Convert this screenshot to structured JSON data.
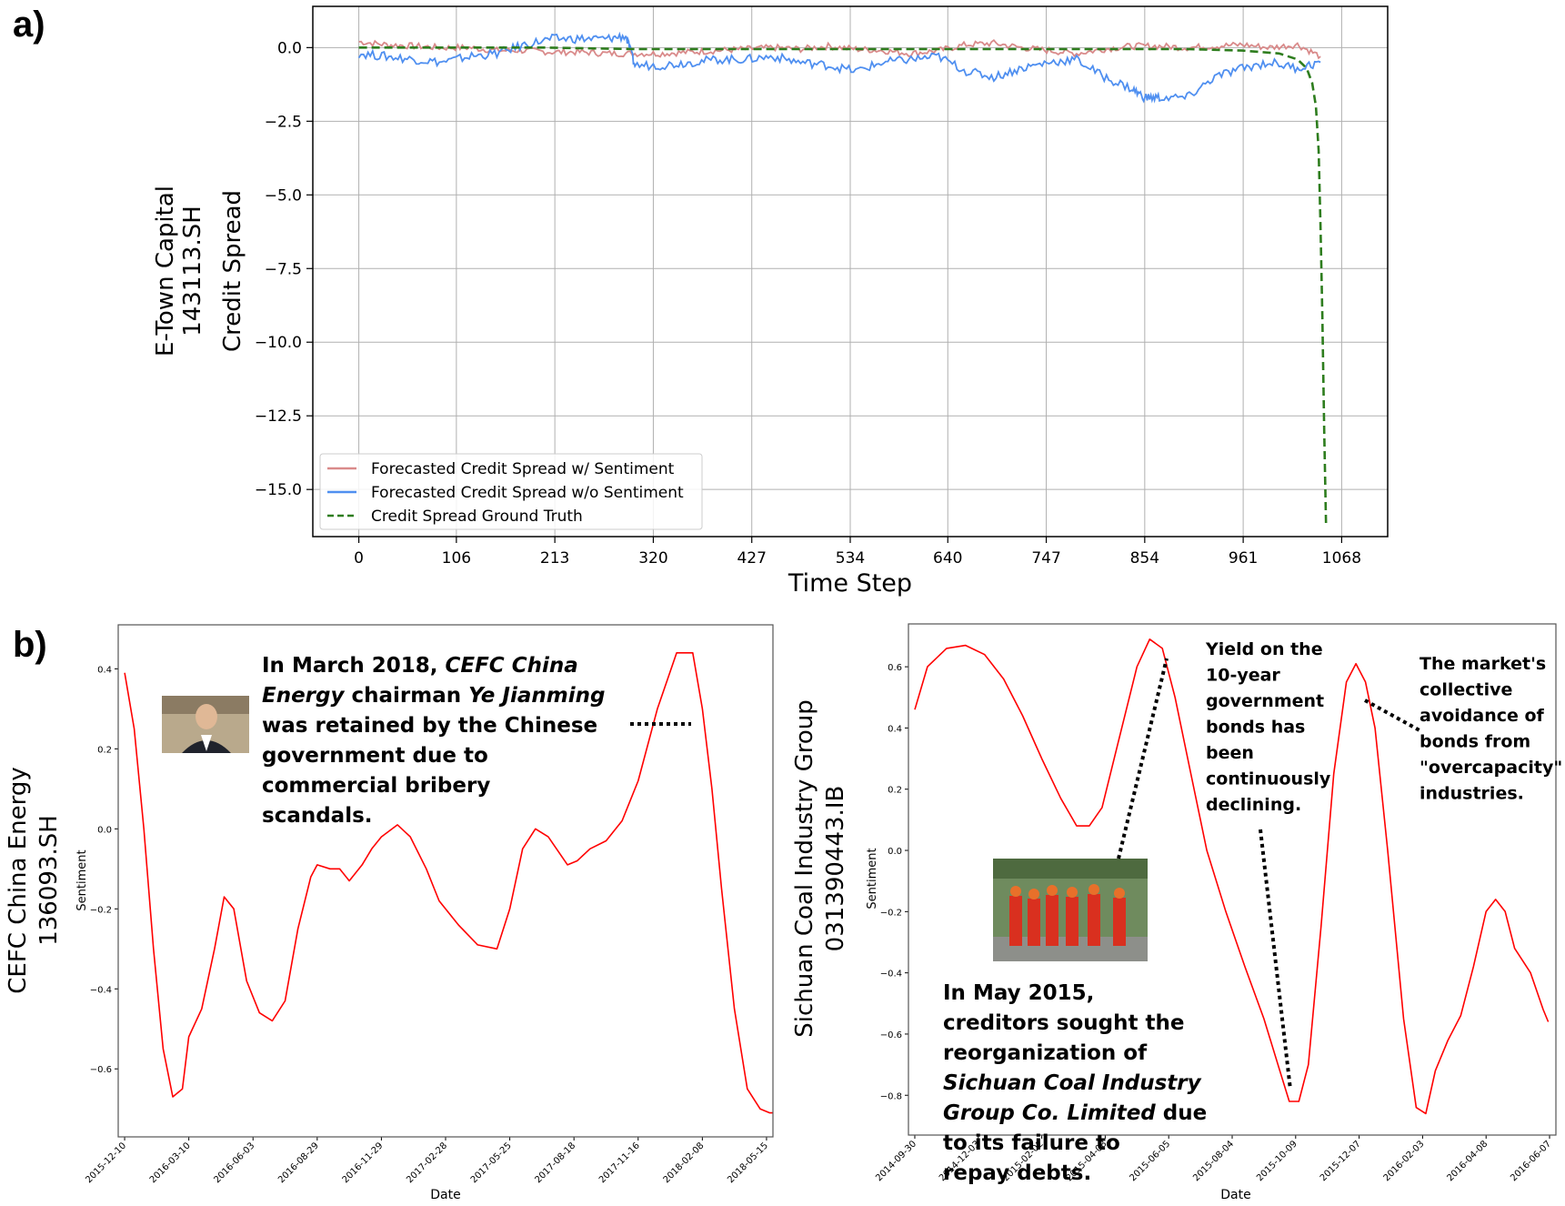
{
  "panel_a_label": "a)",
  "panel_b_label": "b)",
  "chart_data": [
    {
      "type": "line",
      "title": "",
      "xlabel": "Time Step",
      "ylabel_lines": [
        "E-Town Capital",
        "143113.SH",
        "Credit Spread"
      ],
      "xlim": [
        -50,
        1118
      ],
      "ylim": [
        -16.6,
        1.4
      ],
      "xticks": [
        0,
        106,
        213,
        320,
        427,
        534,
        640,
        747,
        854,
        961,
        1068
      ],
      "yticks": [
        0.0,
        -2.5,
        -5.0,
        -7.5,
        -10.0,
        -12.5,
        -15.0
      ],
      "ytick_labels": [
        "0.0",
        "−2.5",
        "−5.0",
        "−7.5",
        "−10.0",
        "−12.5",
        "−15.0"
      ],
      "grid": true,
      "legend": "lower-left",
      "series": [
        {
          "name": "Forecasted Credit Spread w/ Sentiment",
          "color": "#d98a8a",
          "style": "solid",
          "x": [
            0,
            30,
            60,
            90,
            120,
            150,
            180,
            210,
            240,
            270,
            300,
            330,
            360,
            390,
            420,
            450,
            480,
            510,
            540,
            570,
            600,
            630,
            660,
            690,
            720,
            750,
            780,
            810,
            840,
            870,
            900,
            930,
            960,
            990,
            1020,
            1045
          ],
          "y": [
            0.2,
            0.1,
            0.05,
            0.0,
            0.0,
            -0.1,
            -0.1,
            -0.15,
            -0.15,
            -0.2,
            -0.2,
            -0.2,
            -0.15,
            -0.1,
            -0.05,
            0.0,
            -0.05,
            0.05,
            -0.05,
            -0.1,
            -0.2,
            -0.1,
            0.1,
            0.15,
            0.0,
            -0.1,
            -0.2,
            -0.05,
            0.05,
            0.05,
            0.0,
            0.05,
            0.1,
            0.0,
            0.1,
            -0.3
          ]
        },
        {
          "name": "Forecasted Credit Spread w/o Sentiment",
          "color": "#4f8ff0",
          "style": "solid",
          "x": [
            0,
            30,
            60,
            90,
            120,
            150,
            180,
            210,
            240,
            270,
            290,
            300,
            330,
            360,
            390,
            420,
            450,
            480,
            510,
            540,
            570,
            600,
            630,
            660,
            690,
            720,
            750,
            780,
            810,
            840,
            854,
            870,
            900,
            930,
            960,
            990,
            1020,
            1045
          ],
          "y": [
            -0.2,
            -0.3,
            -0.4,
            -0.5,
            -0.3,
            -0.2,
            0.1,
            0.3,
            0.3,
            0.3,
            0.4,
            -0.6,
            -0.6,
            -0.5,
            -0.4,
            -0.4,
            -0.3,
            -0.5,
            -0.6,
            -0.8,
            -0.5,
            -0.4,
            -0.3,
            -0.8,
            -1.0,
            -0.7,
            -0.5,
            -0.4,
            -1.0,
            -1.4,
            -1.7,
            -1.7,
            -1.7,
            -1.0,
            -0.7,
            -0.5,
            -0.7,
            -0.5
          ]
        },
        {
          "name": "Credit Spread Ground Truth",
          "color": "#2e7d1e",
          "style": "dashed",
          "x": [
            0,
            100,
            200,
            300,
            400,
            500,
            600,
            700,
            800,
            900,
            960,
            1000,
            1020,
            1030,
            1036,
            1040,
            1043,
            1045,
            1047,
            1049,
            1051
          ],
          "y": [
            0.0,
            0.0,
            0.0,
            -0.05,
            -0.05,
            -0.05,
            -0.05,
            -0.05,
            -0.05,
            -0.05,
            -0.1,
            -0.2,
            -0.4,
            -0.7,
            -1.2,
            -2.0,
            -3.5,
            -6.0,
            -9.0,
            -13.0,
            -16.2
          ]
        }
      ]
    },
    {
      "type": "line",
      "title": "",
      "xlabel": "Date",
      "ylabel": "Sentiment",
      "outer_ylabel_lines": [
        "CEFC China Energy",
        "136093.SH"
      ],
      "xlim": [
        -0.1,
        10.1
      ],
      "ylim": [
        -0.77,
        0.51
      ],
      "xtick_labels": [
        "2015-12-10",
        "2016-03-10",
        "2016-06-03",
        "2016-08-29",
        "2016-11-29",
        "2017-02-28",
        "2017-05-25",
        "2017-08-18",
        "2017-11-16",
        "2018-02-08",
        "2018-05-15"
      ],
      "yticks": [
        0.4,
        0.2,
        0.0,
        -0.2,
        -0.4,
        -0.6
      ],
      "ytick_labels": [
        "0.4",
        "0.2",
        "0.0",
        "−0.2",
        "−0.4",
        "−0.6"
      ],
      "series": [
        {
          "color": "#ff0000",
          "x": [
            0.0,
            0.15,
            0.3,
            0.45,
            0.6,
            0.75,
            0.9,
            1.0,
            1.2,
            1.4,
            1.55,
            1.7,
            1.9,
            2.1,
            2.3,
            2.5,
            2.7,
            2.9,
            3.0,
            3.2,
            3.35,
            3.5,
            3.7,
            3.85,
            4.0,
            4.25,
            4.45,
            4.7,
            4.9,
            5.2,
            5.5,
            5.8,
            6.0,
            6.2,
            6.4,
            6.6,
            6.9,
            7.05,
            7.25,
            7.5,
            7.75,
            8.0,
            8.3,
            8.6,
            8.85,
            9.0,
            9.15,
            9.3,
            9.5,
            9.7,
            9.9,
            10.05,
            10.1
          ],
          "y": [
            0.39,
            0.25,
            0.0,
            -0.3,
            -0.55,
            -0.67,
            -0.65,
            -0.52,
            -0.45,
            -0.3,
            -0.17,
            -0.2,
            -0.38,
            -0.46,
            -0.48,
            -0.43,
            -0.25,
            -0.12,
            -0.09,
            -0.1,
            -0.1,
            -0.13,
            -0.09,
            -0.05,
            -0.02,
            0.01,
            -0.02,
            -0.1,
            -0.18,
            -0.24,
            -0.29,
            -0.3,
            -0.2,
            -0.05,
            0.0,
            -0.02,
            -0.09,
            -0.08,
            -0.05,
            -0.03,
            0.02,
            0.12,
            0.3,
            0.44,
            0.44,
            0.3,
            0.1,
            -0.15,
            -0.45,
            -0.65,
            -0.7,
            -0.71,
            -0.71
          ]
        }
      ],
      "annotation": {
        "runs": [
          {
            "text": "In March 2018, ",
            "italic": false
          },
          {
            "text": "CEFC China Energy",
            "italic": true
          },
          {
            "text": " chairman ",
            "italic": false
          },
          {
            "text": "Ye Jianming",
            "italic": true
          },
          {
            "text": " was retained by the Chinese government due to commercial bribery scandals.",
            "italic": false
          }
        ]
      },
      "photo": "photo-of-chairman"
    },
    {
      "type": "line",
      "title": "",
      "xlabel": "Date",
      "ylabel": "Sentiment",
      "outer_ylabel_lines": [
        "Sichuan Coal Industry Group",
        "031390443.IB"
      ],
      "xlim": [
        -0.1,
        10.1
      ],
      "ylim": [
        -0.93,
        0.74
      ],
      "xtick_labels": [
        "2014-09-30",
        "2014-12-03",
        "2015-02-02",
        "2015-04-08",
        "2015-06-05",
        "2015-08-04",
        "2015-10-09",
        "2015-12-07",
        "2016-02-03",
        "2016-04-08",
        "2016-06-07"
      ],
      "yticks": [
        0.6,
        0.4,
        0.2,
        0.0,
        -0.2,
        -0.4,
        -0.6,
        -0.8
      ],
      "ytick_labels": [
        "0.6",
        "0.4",
        "0.2",
        "0.0",
        "−0.2",
        "−0.4",
        "−0.6",
        "−0.8"
      ],
      "series": [
        {
          "color": "#ff0000",
          "x": [
            0.0,
            0.2,
            0.5,
            0.8,
            1.1,
            1.4,
            1.7,
            2.0,
            2.3,
            2.55,
            2.75,
            2.95,
            3.2,
            3.5,
            3.7,
            3.9,
            4.1,
            4.35,
            4.6,
            4.9,
            5.2,
            5.5,
            5.75,
            5.9,
            6.05,
            6.2,
            6.4,
            6.6,
            6.8,
            6.95,
            7.1,
            7.25,
            7.45,
            7.7,
            7.9,
            8.05,
            8.2,
            8.4,
            8.6,
            8.8,
            9.0,
            9.15,
            9.3,
            9.45,
            9.7,
            9.9,
            9.98
          ],
          "y": [
            0.46,
            0.6,
            0.66,
            0.67,
            0.64,
            0.56,
            0.44,
            0.3,
            0.17,
            0.08,
            0.08,
            0.14,
            0.35,
            0.6,
            0.69,
            0.66,
            0.5,
            0.25,
            0.0,
            -0.2,
            -0.38,
            -0.55,
            -0.72,
            -0.82,
            -0.82,
            -0.7,
            -0.25,
            0.25,
            0.55,
            0.61,
            0.55,
            0.4,
            0.0,
            -0.55,
            -0.84,
            -0.86,
            -0.72,
            -0.62,
            -0.54,
            -0.38,
            -0.2,
            -0.16,
            -0.2,
            -0.32,
            -0.4,
            -0.52,
            -0.56
          ]
        }
      ],
      "annotations": [
        {
          "text_lines": [
            "Yield on the",
            "10-year",
            "government",
            "bonds has",
            "been",
            "continuously",
            "declining."
          ]
        },
        {
          "text_lines": [
            "The market's",
            "collective",
            "avoidance of",
            "bonds from",
            "\"overcapacity\"",
            "industries."
          ]
        },
        {
          "runs": [
            {
              "text": "In May 2015, creditors sought the reorganization of ",
              "italic": false
            },
            {
              "text": "Sichuan Coal Industry Group Co. Limited",
              "italic": true
            },
            {
              "text": " due to its failure to repay debts.",
              "italic": false
            }
          ]
        }
      ],
      "photo": "photo-of-miners"
    }
  ]
}
